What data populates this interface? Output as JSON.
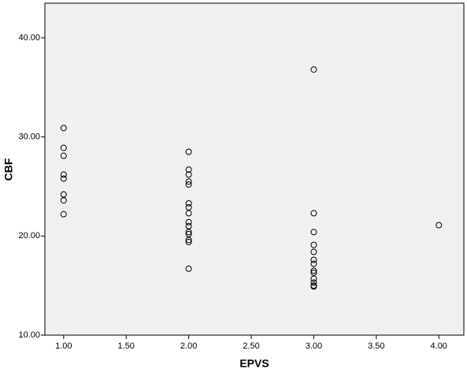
{
  "chart_data": {
    "type": "scatter",
    "x_label": "EPVS",
    "y_label": "CBF",
    "xlim": [
      0.85,
      4.2
    ],
    "ylim": [
      10,
      43.5
    ],
    "xticks": [
      {
        "value": 1,
        "label": "1.00"
      },
      {
        "value": 1.5,
        "label": "1.50"
      },
      {
        "value": 2,
        "label": "2.00"
      },
      {
        "value": 2.5,
        "label": "2.50"
      },
      {
        "value": 3,
        "label": "3.00"
      },
      {
        "value": 3.5,
        "label": "3.50"
      },
      {
        "value": 4,
        "label": "4.00"
      }
    ],
    "yticks": [
      {
        "value": 10,
        "label": "10.00"
      },
      {
        "value": 20,
        "label": "20.00"
      },
      {
        "value": 30,
        "label": "30.00"
      },
      {
        "value": 40,
        "label": "40.00"
      }
    ],
    "color": "#000000",
    "background": "#f0f0f0",
    "x": [
      1,
      1,
      1,
      1,
      1,
      1,
      1,
      1,
      2,
      2,
      2,
      2,
      2,
      2,
      2,
      2,
      2,
      2,
      2,
      2,
      2,
      2,
      2,
      3,
      3,
      3,
      3,
      3,
      3,
      3,
      3,
      3,
      3,
      3,
      3,
      3,
      4
    ],
    "y": [
      30.9,
      28.9,
      28.1,
      26.2,
      25.8,
      24.2,
      23.6,
      22.2,
      28.5,
      26.7,
      26.2,
      25.5,
      25.2,
      23.3,
      22.9,
      22.3,
      21.4,
      21.0,
      20.4,
      20.2,
      19.6,
      19.4,
      16.7,
      36.8,
      22.3,
      20.4,
      19.1,
      18.4,
      17.6,
      17.2,
      16.5,
      16.3,
      15.7,
      15.3,
      15.0,
      14.9,
      21.1
    ]
  }
}
